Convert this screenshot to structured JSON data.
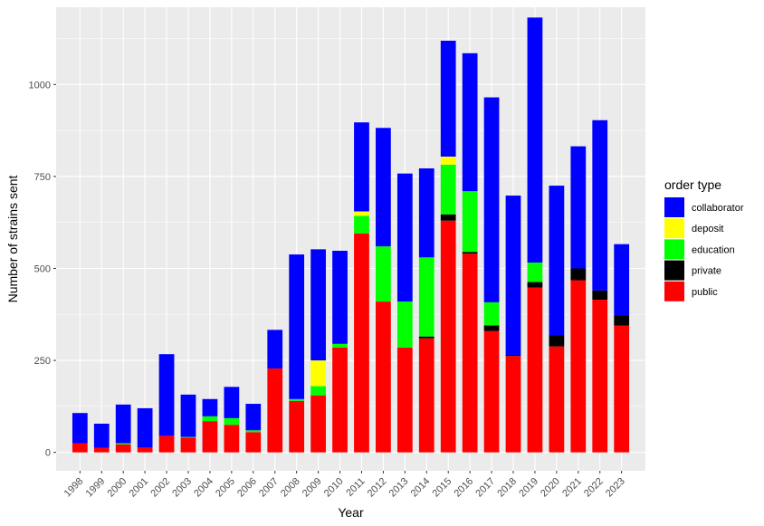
{
  "chart_data": {
    "type": "bar",
    "stacked": true,
    "xlabel": "Year",
    "ylabel": "Number of strains sent",
    "ylim": [
      -50,
      1210
    ],
    "yticks": [
      0,
      250,
      500,
      750,
      1000
    ],
    "grid": true,
    "legend_title": "order type",
    "legend_position": "right",
    "categories": [
      "1998",
      "1999",
      "2000",
      "2001",
      "2002",
      "2003",
      "2004",
      "2005",
      "2006",
      "2007",
      "2008",
      "2009",
      "2010",
      "2011",
      "2012",
      "2013",
      "2014",
      "2015",
      "2016",
      "2017",
      "2018",
      "2019",
      "2020",
      "2021",
      "2022",
      "2023"
    ],
    "series": [
      {
        "name": "public",
        "color": "#ff0000",
        "values": [
          25,
          12,
          22,
          13,
          45,
          40,
          85,
          75,
          55,
          228,
          140,
          155,
          285,
          595,
          410,
          285,
          310,
          630,
          540,
          330,
          262,
          448,
          288,
          468,
          415,
          345
        ]
      },
      {
        "name": "private",
        "color": "#000000",
        "values": [
          0,
          0,
          0,
          0,
          0,
          0,
          0,
          0,
          0,
          0,
          0,
          0,
          0,
          0,
          0,
          0,
          5,
          17,
          5,
          15,
          3,
          15,
          30,
          32,
          25,
          28
        ]
      },
      {
        "name": "education",
        "color": "#00ff00",
        "values": [
          0,
          0,
          3,
          0,
          0,
          2,
          13,
          18,
          5,
          0,
          5,
          25,
          10,
          48,
          150,
          125,
          215,
          135,
          165,
          63,
          0,
          53,
          0,
          0,
          0,
          0
        ]
      },
      {
        "name": "deposit",
        "color": "#ffff00",
        "values": [
          0,
          0,
          0,
          0,
          0,
          0,
          0,
          0,
          0,
          0,
          0,
          70,
          0,
          12,
          0,
          0,
          0,
          22,
          0,
          0,
          0,
          0,
          0,
          0,
          0,
          0
        ]
      },
      {
        "name": "collaborator",
        "color": "#0000ff",
        "values": [
          82,
          66,
          105,
          107,
          222,
          115,
          47,
          85,
          72,
          105,
          393,
          302,
          253,
          242,
          322,
          348,
          242,
          315,
          375,
          557,
          433,
          666,
          407,
          332,
          463,
          193
        ]
      }
    ],
    "legend_order": [
      "collaborator",
      "deposit",
      "education",
      "private",
      "public"
    ]
  }
}
